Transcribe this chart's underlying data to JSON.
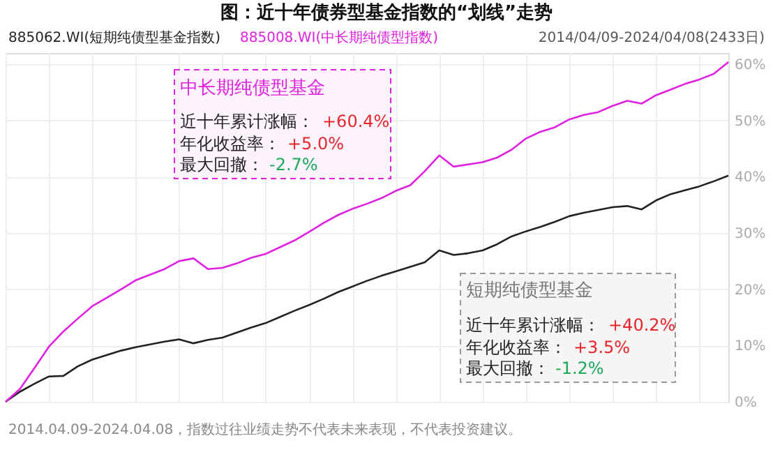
{
  "chart_data": {
    "type": "line",
    "title": "图：近十年债券型基金指数的“划线”走势",
    "categories": [
      null,
      null,
      null,
      null,
      null,
      null,
      null,
      null,
      null,
      null,
      null,
      null,
      null,
      null,
      null,
      null,
      null,
      null,
      null,
      null,
      null,
      null,
      null,
      null,
      null,
      null,
      null,
      null,
      null,
      null,
      null,
      null,
      null,
      null,
      null,
      null,
      null,
      null,
      null,
      null,
      null,
      null,
      null,
      null,
      null,
      null,
      null,
      null,
      null,
      null,
      null
    ],
    "series": [
      {
        "name": "885062.WI(短期纯债型基金指数)",
        "color": "#222222",
        "values": [
          0,
          1.8,
          3.2,
          4.5,
          4.6,
          6.3,
          7.5,
          8.3,
          9.1,
          9.7,
          10.2,
          10.7,
          11.1,
          10.4,
          11.0,
          11.4,
          12.3,
          13.2,
          14.0,
          15.1,
          16.2,
          17.2,
          18.3,
          19.5,
          20.5,
          21.5,
          22.4,
          23.2,
          24.0,
          24.8,
          26.9,
          26.1,
          26.4,
          26.9,
          28.0,
          29.4,
          30.3,
          31.1,
          32.0,
          33.0,
          33.6,
          34.1,
          34.6,
          34.8,
          34.2,
          35.8,
          36.9,
          37.6,
          38.3,
          39.2,
          40.2
        ]
      },
      {
        "name": "885008.WI(中长期纯债型指数)",
        "color": "#e020e0",
        "values": [
          0,
          2.3,
          6.0,
          9.8,
          12.5,
          14.8,
          17.0,
          18.5,
          20.0,
          21.6,
          22.6,
          23.6,
          25.0,
          25.5,
          23.6,
          23.8,
          24.6,
          25.6,
          26.3,
          27.5,
          28.7,
          30.2,
          31.8,
          33.2,
          34.3,
          35.2,
          36.2,
          37.5,
          38.5,
          41.0,
          43.8,
          41.8,
          42.2,
          42.6,
          43.4,
          44.8,
          46.8,
          48.0,
          48.8,
          50.2,
          51.0,
          51.5,
          52.6,
          53.5,
          53.0,
          54.5,
          55.5,
          56.5,
          57.3,
          58.3,
          60.4
        ]
      }
    ],
    "ylim": [
      0,
      62
    ],
    "yticks": [
      {
        "value": 0,
        "label": "0%"
      },
      {
        "value": 10,
        "label": "10%"
      },
      {
        "value": 20,
        "label": "20%"
      },
      {
        "value": 30,
        "label": "30%"
      },
      {
        "value": 40,
        "label": "40%"
      },
      {
        "value": 50,
        "label": "50%"
      },
      {
        "value": 60,
        "label": "60%"
      }
    ],
    "tick_labels": "y",
    "grid": true,
    "legend": "top left",
    "marker": "none",
    "line_style": "solid",
    "annotations": [
      "2014/04/09-2024/04/08(2433日)",
      "中长期纯债型基金",
      "近十年累计涨幅：",
      "+60.4%",
      "年化收益率：",
      "+5.0%",
      "最大回撤：",
      "-2.7%",
      "短期纯债型基金",
      "近十年累计涨幅：",
      "+40.2%",
      "年化收益率：",
      "+3.5%",
      "最大回撤：",
      "-1.2%",
      "2014.04.09-2024.04.08，指数过往业绩走势不代表未来表现，不代表投资建议。"
    ]
  }
}
